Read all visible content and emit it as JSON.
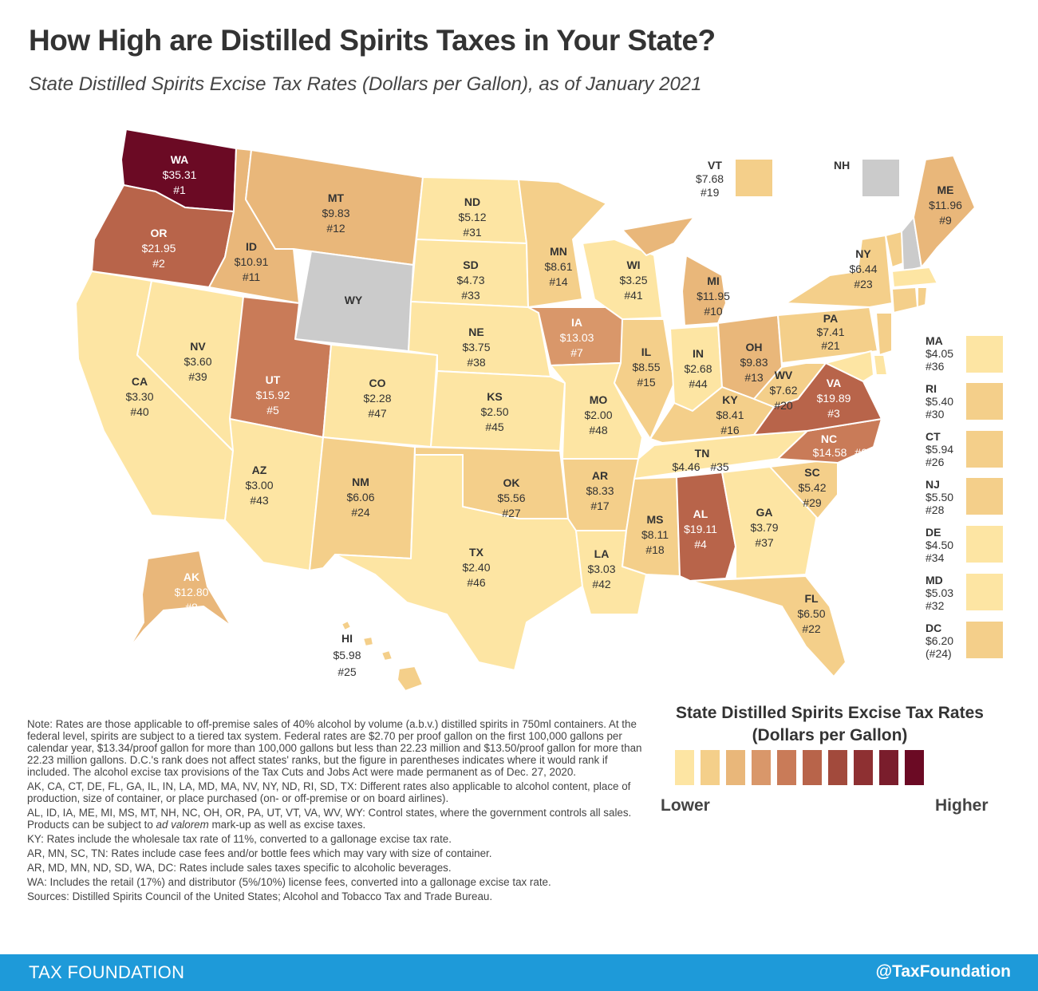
{
  "title": "How High are Distilled Spirits Taxes in Your State?",
  "subtitle": "State Distilled Spirits Excise Tax Rates (Dollars per Gallon), as of January 2021",
  "colors": {
    "c1": "#fde5a3",
    "c2": "#f4cf8a",
    "c3": "#e9b77a",
    "c4": "#d9976a",
    "c5": "#c97b58",
    "c6": "#b8644a",
    "c7": "#a24a3c",
    "c8": "#8e3032",
    "c9": "#7a1d2c",
    "c10": "#6b0a24",
    "control": "#cbcbcb"
  },
  "states": {
    "WA": {
      "abbr": "WA",
      "value": "$35.31",
      "rank": "#1"
    },
    "OR": {
      "abbr": "OR",
      "value": "$21.95",
      "rank": "#2"
    },
    "CA": {
      "abbr": "CA",
      "value": "$3.30",
      "rank": "#40"
    },
    "NV": {
      "abbr": "NV",
      "value": "$3.60",
      "rank": "#39"
    },
    "ID": {
      "abbr": "ID",
      "value": "$10.91",
      "rank": "#11"
    },
    "MT": {
      "abbr": "MT",
      "value": "$9.83",
      "rank": "#12"
    },
    "WY": {
      "abbr": "WY",
      "value": "",
      "rank": ""
    },
    "UT": {
      "abbr": "UT",
      "value": "$15.92",
      "rank": "#5"
    },
    "AZ": {
      "abbr": "AZ",
      "value": "$3.00",
      "rank": "#43"
    },
    "CO": {
      "abbr": "CO",
      "value": "$2.28",
      "rank": "#47"
    },
    "NM": {
      "abbr": "NM",
      "value": "$6.06",
      "rank": "#24"
    },
    "ND": {
      "abbr": "ND",
      "value": "$5.12",
      "rank": "#31"
    },
    "SD": {
      "abbr": "SD",
      "value": "$4.73",
      "rank": "#33"
    },
    "NE": {
      "abbr": "NE",
      "value": "$3.75",
      "rank": "#38"
    },
    "KS": {
      "abbr": "KS",
      "value": "$2.50",
      "rank": "#45"
    },
    "OK": {
      "abbr": "OK",
      "value": "$5.56",
      "rank": "#27"
    },
    "TX": {
      "abbr": "TX",
      "value": "$2.40",
      "rank": "#46"
    },
    "MN": {
      "abbr": "MN",
      "value": "$8.61",
      "rank": "#14"
    },
    "IA": {
      "abbr": "IA",
      "value": "$13.03",
      "rank": "#7"
    },
    "MO": {
      "abbr": "MO",
      "value": "$2.00",
      "rank": "#48"
    },
    "AR": {
      "abbr": "AR",
      "value": "$8.33",
      "rank": "#17"
    },
    "LA": {
      "abbr": "LA",
      "value": "$3.03",
      "rank": "#42"
    },
    "WI": {
      "abbr": "WI",
      "value": "$3.25",
      "rank": "#41"
    },
    "IL": {
      "abbr": "IL",
      "value": "$8.55",
      "rank": "#15"
    },
    "MI": {
      "abbr": "MI",
      "value": "$11.95",
      "rank": "#10"
    },
    "IN": {
      "abbr": "IN",
      "value": "$2.68",
      "rank": "#44"
    },
    "OH": {
      "abbr": "OH",
      "value": "$9.83",
      "rank": "#13"
    },
    "KY": {
      "abbr": "KY",
      "value": "$8.41",
      "rank": "#16"
    },
    "TN": {
      "abbr": "TN",
      "value": "$4.46",
      "rank": "#35"
    },
    "MS": {
      "abbr": "MS",
      "value": "$8.11",
      "rank": "#18"
    },
    "AL": {
      "abbr": "AL",
      "value": "$19.11",
      "rank": "#4"
    },
    "GA": {
      "abbr": "GA",
      "value": "$3.79",
      "rank": "#37"
    },
    "FL": {
      "abbr": "FL",
      "value": "$6.50",
      "rank": "#22"
    },
    "SC": {
      "abbr": "SC",
      "value": "$5.42",
      "rank": "#29"
    },
    "NC": {
      "abbr": "NC",
      "value": "$14.58",
      "rank": "#6"
    },
    "VA": {
      "abbr": "VA",
      "value": "$19.89",
      "rank": "#3"
    },
    "WV": {
      "abbr": "WV",
      "value": "$7.62",
      "rank": "#20"
    },
    "PA": {
      "abbr": "PA",
      "value": "$7.41",
      "rank": "#21"
    },
    "NY": {
      "abbr": "NY",
      "value": "$6.44",
      "rank": "#23"
    },
    "ME": {
      "abbr": "ME",
      "value": "$11.96",
      "rank": "#9"
    },
    "AK": {
      "abbr": "AK",
      "value": "$12.80",
      "rank": "#8"
    },
    "HI": {
      "abbr": "HI",
      "value": "$5.98",
      "rank": "#25"
    }
  },
  "top_boxes": {
    "VT": {
      "abbr": "VT",
      "value": "$7.68",
      "rank": "#19"
    },
    "NH": {
      "abbr": "NH"
    }
  },
  "side_states": [
    {
      "abbr": "MA",
      "value": "$4.05",
      "rank": "#36",
      "color": "#fde5a3"
    },
    {
      "abbr": "RI",
      "value": "$5.40",
      "rank": "#30",
      "color": "#f4cf8a"
    },
    {
      "abbr": "CT",
      "value": "$5.94",
      "rank": "#26",
      "color": "#f4cf8a"
    },
    {
      "abbr": "NJ",
      "value": "$5.50",
      "rank": "#28",
      "color": "#f4cf8a"
    },
    {
      "abbr": "DE",
      "value": "$4.50",
      "rank": "#34",
      "color": "#fde5a3"
    },
    {
      "abbr": "MD",
      "value": "$5.03",
      "rank": "#32",
      "color": "#fde5a3"
    },
    {
      "abbr": "DC",
      "value": "$6.20",
      "rank": "(#24)",
      "color": "#f4cf8a"
    }
  ],
  "notes": {
    "n1": "Note: Rates are those applicable to off-premise sales of 40% alcohol by volume (a.b.v.) distilled spirits in 750ml containers. At the federal level, spirits are subject to a tiered tax system. Federal rates are $2.70 per proof gallon on the first 100,000 gallons per calendar year, $13.34/proof gallon for more than 100,000 gallons but less than 22.23 million and $13.50/proof gallon for more than 22.23 million gallons. D.C.'s rank does not affect states' ranks, but the figure in parentheses indicates where it would rank if included. The alcohol excise tax provisions of the Tax Cuts and Jobs Act were made permanent as of Dec. 27, 2020.",
    "n2": "AK, CA, CT, DE,  FL, GA, IL, IN, LA, MD, MA, NV, NY, ND, RI, SD, TX: Different rates also applicable to alcohol content, place of production, size of container, or place purchased (on- or off-premise or on board airlines).",
    "n3a": "AL, ID, IA, ME, MI, MS, MT, NH, NC, OH, OR, PA, UT, VT, VA, WV, WY: Control states, where the government controls all sales. Products can be subject to ",
    "n3b": "ad valorem",
    "n3c": " mark-up as well as excise taxes.",
    "n4": "KY: Rates include the wholesale tax rate of 11%, converted to a gallonage excise tax rate.",
    "n5": "AR, MN, SC, TN: Rates include case fees and/or bottle fees which may vary with size of container.",
    "n6": "AR, MD, MN, ND, SD, WA, DC: Rates include sales taxes specific to alcoholic beverages.",
    "n7": "WA: Includes the retail (17%) and distributor (5%/10%) license fees, converted into a gallonage excise tax rate.",
    "n8": "Sources: Distilled Spirits Council of the United States; Alcohol and Tobacco Tax and Trade Bureau."
  },
  "legend": {
    "title_line1": "State Distilled Spirits Excise Tax Rates",
    "title_line2": "(Dollars per Gallon)",
    "lower": "Lower",
    "higher": "Higher",
    "colors": [
      "#fde5a3",
      "#f4cf8a",
      "#e9b77a",
      "#d9976a",
      "#c97b58",
      "#b8644a",
      "#a24a3c",
      "#8e3032",
      "#7a1d2c",
      "#6b0a24"
    ]
  },
  "footer": {
    "left": "TAX FOUNDATION",
    "right": "@TaxFoundation"
  }
}
